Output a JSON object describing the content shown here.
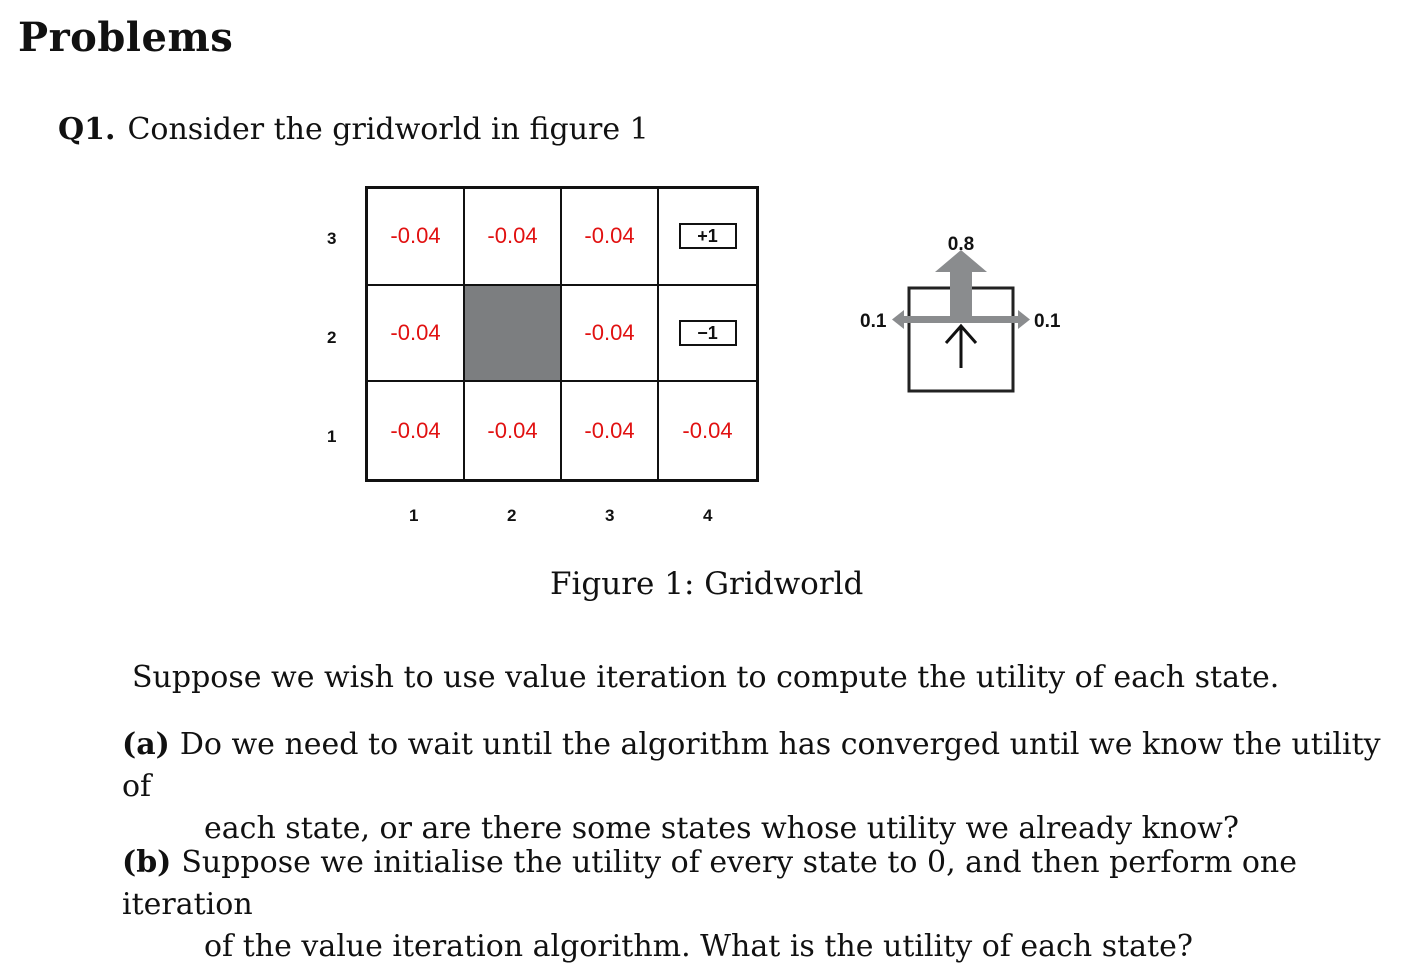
{
  "heading": "Problems",
  "question": {
    "number": "Q1.",
    "text": "Consider the gridworld in figure 1"
  },
  "gridworld": {
    "row_labels": [
      "3",
      "2",
      "1"
    ],
    "col_labels": [
      "1",
      "2",
      "3",
      "4"
    ],
    "cells": [
      [
        "-0.04",
        "-0.04",
        "-0.04",
        "+1"
      ],
      [
        "-0.04",
        "",
        "-0.04",
        "−1"
      ],
      [
        "-0.04",
        "-0.04",
        "-0.04",
        "-0.04"
      ]
    ],
    "reward_color": "#e11111",
    "wall_color": "#7c7e80"
  },
  "transition_model": {
    "forward_prob": "0.8",
    "left_prob": "0.1",
    "right_prob": "0.1"
  },
  "caption": "Figure 1: Gridworld",
  "paragraph": "Suppose we wish to use value iteration to compute the utility of each state.",
  "parts": {
    "a": {
      "label": "(a)",
      "line1": "Do we need to wait until the algorithm has converged until we know the utility of",
      "line2": "each state, or are there some states whose utility we already know?"
    },
    "b": {
      "label": "(b)",
      "line1": "Suppose we initialise the utility of every state to 0, and then perform one iteration",
      "line2": "of the value iteration algorithm. What is the utility of each state?"
    }
  }
}
